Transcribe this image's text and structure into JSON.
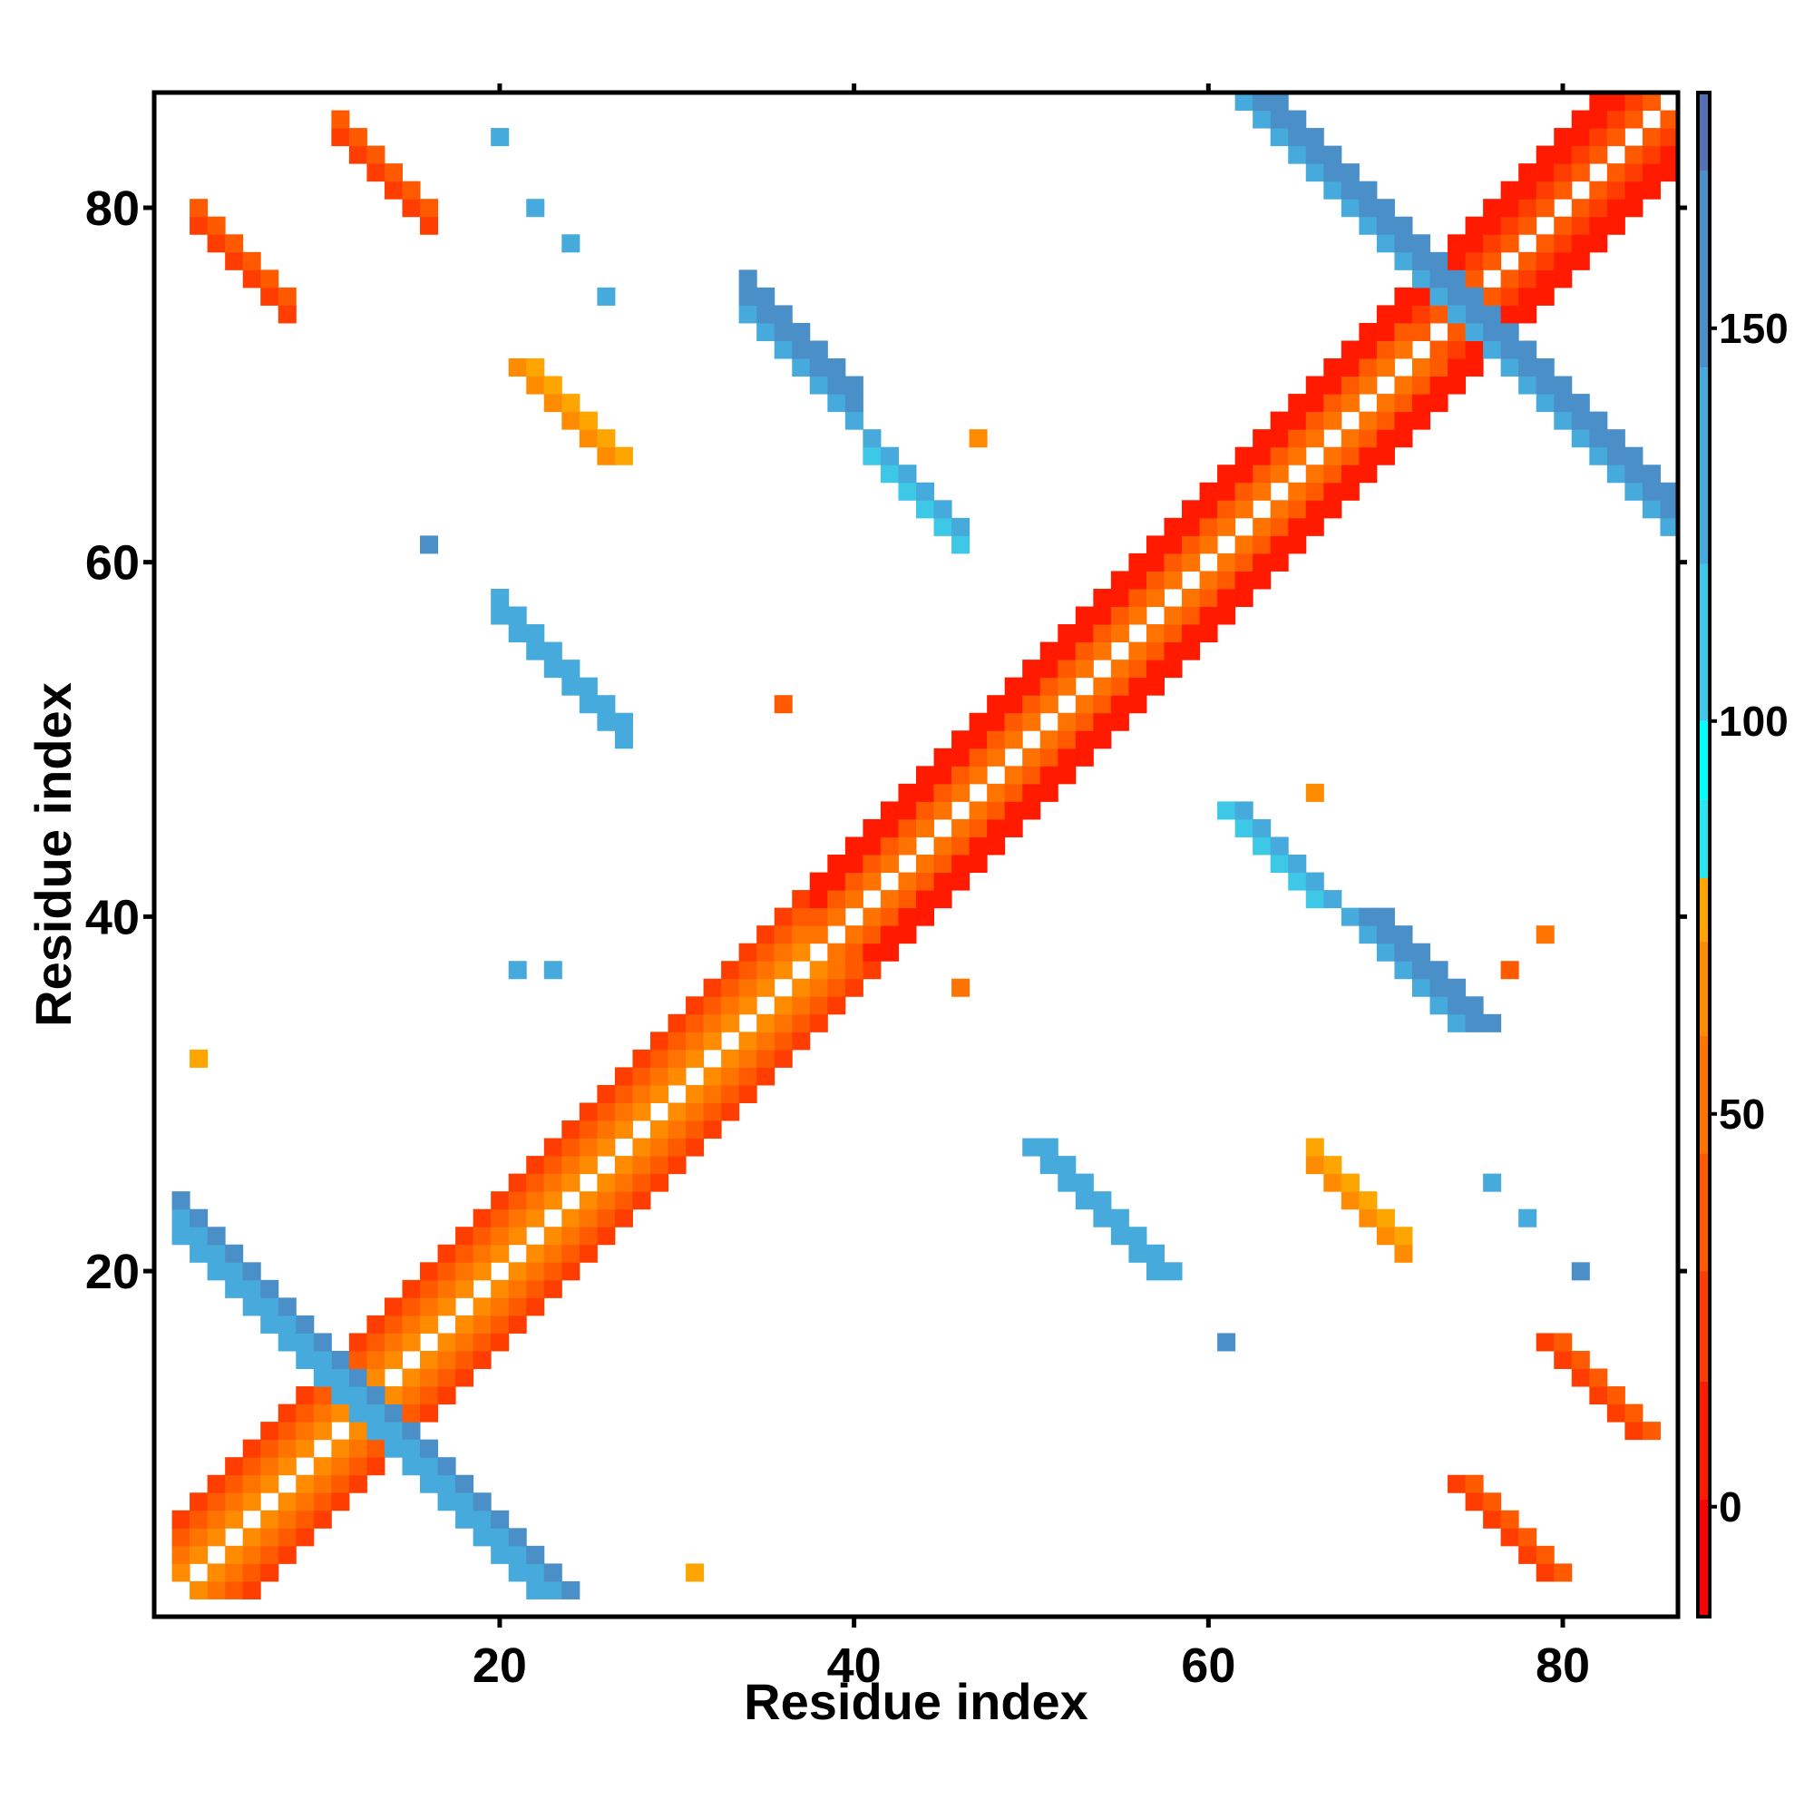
{
  "chart_data": {
    "type": "heatmap",
    "title": "",
    "xlabel": "Residue index",
    "ylabel": "Residue index",
    "xlim": [
      0.5,
      86.5
    ],
    "ylim": [
      0.5,
      86.5
    ],
    "x_ticks": [
      20,
      40,
      60,
      80
    ],
    "y_ticks": [
      20,
      40,
      60,
      80
    ],
    "grid": false,
    "colorbar": {
      "range": [
        -14,
        180
      ],
      "ticks": [
        0,
        50,
        100,
        150
      ],
      "bands": [
        {
          "from": -14,
          "to": 1,
          "color": "#ff0000"
        },
        {
          "from": 1,
          "to": 16,
          "color": "#ff1a00"
        },
        {
          "from": 16,
          "to": 30,
          "color": "#ff3d00"
        },
        {
          "from": 30,
          "to": 45,
          "color": "#ff5a00"
        },
        {
          "from": 45,
          "to": 60,
          "color": "#ff7300"
        },
        {
          "from": 60,
          "to": 72,
          "color": "#ff8c00"
        },
        {
          "from": 72,
          "to": 80,
          "color": "#ffa500"
        },
        {
          "from": 80,
          "to": 90,
          "color": "#29e6f0"
        },
        {
          "from": 90,
          "to": 100,
          "color": "#00ffff"
        },
        {
          "from": 100,
          "to": 120,
          "color": "#3cc8e6"
        },
        {
          "from": 120,
          "to": 145,
          "color": "#46aadc"
        },
        {
          "from": 145,
          "to": 170,
          "color": "#4b8fc8"
        },
        {
          "from": 170,
          "to": 180,
          "color": "#5571b4"
        },
        {
          "from": 180,
          "to": 200,
          "color": "#ffffff"
        }
      ]
    },
    "regions": [
      {
        "name": "helix-1",
        "kind": "diag",
        "x": [
          2,
          38
        ],
        "d": [
          1,
          4
        ],
        "value": 35
      },
      {
        "name": "helix-2",
        "kind": "diag",
        "x": [
          38,
          72
        ],
        "d": [
          1,
          4
        ],
        "value": 15
      },
      {
        "name": "helix-3",
        "kind": "diag",
        "x": [
          72,
          86
        ],
        "d": [
          1,
          4
        ],
        "value": 10
      },
      {
        "name": "strand-pair-1",
        "kind": "anti",
        "x": [
          2,
          20
        ],
        "s": 24,
        "w": 3,
        "value": 130
      },
      {
        "name": "strand-pair-2",
        "kind": "anti",
        "x": [
          20,
          27
        ],
        "s": 77,
        "w": 2,
        "value": 130
      },
      {
        "name": "strand-pair-3",
        "kind": "anti",
        "x": [
          34,
          40
        ],
        "s": 108,
        "w": 3,
        "value": 140
      },
      {
        "name": "strand-pair-4",
        "kind": "anti",
        "x": [
          62,
          75
        ],
        "s": 148,
        "w": 3,
        "value": 140
      },
      {
        "name": "contact-patch-1",
        "kind": "anti",
        "x": [
          3,
          8
        ],
        "s": 82,
        "w": 2,
        "value": 20
      },
      {
        "name": "contact-patch-2",
        "kind": "anti",
        "x": [
          66,
          71
        ],
        "s": 92,
        "w": 2,
        "value": 60
      },
      {
        "name": "contact-patch-3",
        "kind": "anti",
        "x": [
          41,
          46
        ],
        "s": 107,
        "w": 2,
        "value": 110
      },
      {
        "name": "contact-patch-4",
        "kind": "anti",
        "x": [
          11,
          16
        ],
        "s": 95,
        "w": 2,
        "value": 25
      }
    ],
    "points": [
      [
        20,
        84,
        140
      ],
      [
        22,
        80,
        140
      ],
      [
        24,
        78,
        140
      ],
      [
        26,
        75,
        140
      ],
      [
        16,
        61,
        150
      ],
      [
        47,
        67,
        60
      ],
      [
        21,
        37,
        120
      ],
      [
        23,
        37,
        120
      ],
      [
        36,
        52,
        40
      ],
      [
        66,
        47,
        60
      ],
      [
        46,
        36,
        50
      ],
      [
        61,
        16,
        150
      ],
      [
        81,
        20,
        150
      ],
      [
        76,
        25,
        140
      ],
      [
        78,
        23,
        120
      ],
      [
        3,
        32,
        75
      ],
      [
        31,
        3,
        75
      ],
      [
        79,
        39,
        50
      ],
      [
        77,
        37,
        40
      ]
    ]
  }
}
